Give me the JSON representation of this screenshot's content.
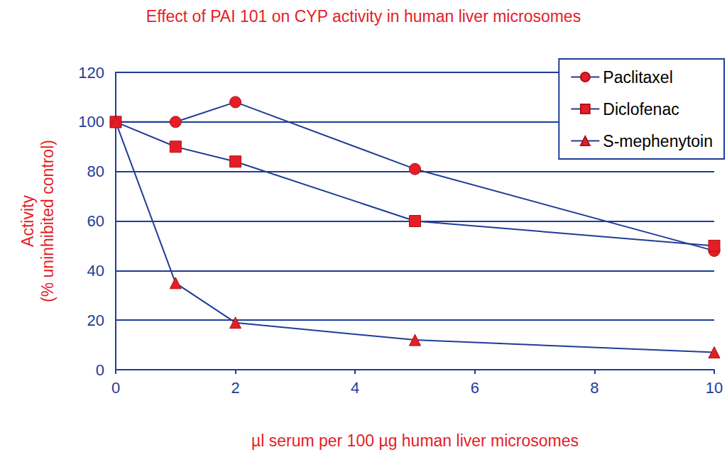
{
  "chart_data": {
    "type": "line",
    "title": "Effect of PAI 101 on CYP activity in human liver microsomes",
    "x_label": "µl serum per 100 µg human liver microsomes",
    "y_label": "Activity\n(% uninhibited control)",
    "x": [
      0,
      1,
      2,
      5,
      10
    ],
    "series": [
      {
        "name": "Paclitaxel",
        "color": "#e41e26",
        "marker": "circle",
        "line_style": "solid",
        "values": [
          100,
          100,
          108,
          81,
          48
        ]
      },
      {
        "name": "Diclofenac",
        "color": "#e41e26",
        "marker": "square",
        "line_style": "solid",
        "values": [
          100,
          90,
          84,
          60,
          50
        ]
      },
      {
        "name": "S-mephenytoin",
        "color": "#e41e26",
        "marker": "triangle",
        "line_style": "solid",
        "values": [
          100,
          35,
          19,
          12,
          7
        ]
      }
    ],
    "color": "#1f3c98",
    "xlim": [
      0,
      10
    ],
    "xticks": [
      0,
      2,
      4,
      6,
      8,
      10
    ],
    "ylim": [
      0,
      120
    ],
    "yticks": [
      0,
      20,
      40,
      60,
      80,
      100,
      120
    ],
    "grid": true,
    "legend": "top-right"
  }
}
